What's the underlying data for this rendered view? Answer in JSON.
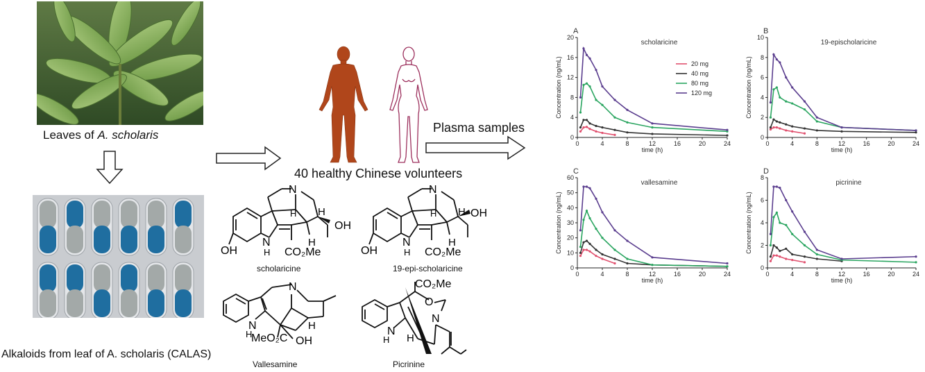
{
  "left": {
    "leaves_caption_prefix": "Leaves of ",
    "leaves_caption_species": "A. scholaris",
    "capsules_caption": "Alkaloids from leaf of A. scholaris (CALAS)"
  },
  "middle": {
    "volunteers_caption": "40  healthy Chinese volunteers",
    "plasma_caption": "Plasma samples",
    "molecules": {
      "scholaricine": "scholaricine",
      "epi": "19-epi-scholaricine",
      "vallesamine": "Vallesamine",
      "picrinine": "Picrinine"
    },
    "atoms": {
      "N": "N",
      "H": "H",
      "NH": "N\nH",
      "OH": "OH",
      "MeOH": "OH",
      "CO2Me": "CO₂Me",
      "MeO2C": "MeO₂C",
      "O": "O"
    }
  },
  "chart_data": [
    {
      "type": "line",
      "panel": "A",
      "title": "scholaricine",
      "ylabel": "Concentration (ng/mL)",
      "xlabel": "time (h)",
      "ylim": [
        0,
        20
      ],
      "yticks": [
        0,
        4,
        8,
        12,
        16,
        20
      ],
      "xlim": [
        0,
        24
      ],
      "xticks": [
        0,
        4,
        8,
        12,
        16,
        20,
        24
      ],
      "legend": "top-right",
      "series": [
        {
          "name": "20 mg",
          "color": "#e0506e",
          "x": [
            0.5,
            1,
            1.5,
            2,
            3,
            4,
            6
          ],
          "y": [
            1.2,
            2.0,
            2.1,
            1.7,
            1.2,
            0.9,
            0.5
          ]
        },
        {
          "name": "40 mg",
          "color": "#333333",
          "x": [
            0.5,
            1,
            1.5,
            2,
            3,
            4,
            6,
            8,
            12,
            24
          ],
          "y": [
            2.0,
            3.5,
            3.5,
            2.8,
            2.3,
            2.0,
            1.5,
            1.0,
            0.7,
            0.4
          ]
        },
        {
          "name": "80 mg",
          "color": "#2aa560",
          "x": [
            0.5,
            1,
            1.5,
            2,
            3,
            4,
            6,
            8,
            12,
            24
          ],
          "y": [
            5.0,
            10.5,
            10.8,
            10.2,
            7.5,
            6.5,
            4.0,
            3.0,
            2.0,
            1.2
          ]
        },
        {
          "name": "120 mg",
          "color": "#5a3d8e",
          "x": [
            0.5,
            1,
            1.5,
            2,
            3,
            4,
            6,
            8,
            12,
            24
          ],
          "y": [
            8.0,
            17.8,
            16.5,
            15.8,
            13.5,
            10.2,
            7.5,
            5.5,
            2.8,
            1.5
          ]
        }
      ]
    },
    {
      "type": "line",
      "panel": "B",
      "title": "19-epischolaricine",
      "ylabel": "Concentration (ng/mL)",
      "xlabel": "time (h)",
      "ylim": [
        0,
        10
      ],
      "yticks": [
        0,
        2,
        4,
        6,
        8,
        10
      ],
      "xlim": [
        0,
        24
      ],
      "xticks": [
        0,
        4,
        8,
        12,
        16,
        20,
        24
      ],
      "series": [
        {
          "name": "20 mg",
          "color": "#e0506e",
          "x": [
            0.5,
            1,
            1.5,
            2,
            3,
            4,
            6
          ],
          "y": [
            0.8,
            1.0,
            1.0,
            0.9,
            0.7,
            0.6,
            0.4
          ]
        },
        {
          "name": "40 mg",
          "color": "#333333",
          "x": [
            0.5,
            1,
            1.5,
            2,
            3,
            4,
            6,
            8,
            12,
            24
          ],
          "y": [
            1.0,
            1.8,
            1.6,
            1.5,
            1.3,
            1.1,
            0.9,
            0.7,
            0.6,
            0.5
          ]
        },
        {
          "name": "80 mg",
          "color": "#2aa560",
          "x": [
            0.5,
            1,
            1.5,
            2,
            3,
            4,
            6,
            8,
            12,
            24
          ],
          "y": [
            2.0,
            4.8,
            5.0,
            4.0,
            3.6,
            3.4,
            2.8,
            1.6,
            1.0,
            0.7
          ]
        },
        {
          "name": "120 mg",
          "color": "#5a3d8e",
          "x": [
            0.5,
            1,
            1.5,
            2,
            3,
            4,
            6,
            8,
            12,
            24
          ],
          "y": [
            3.5,
            8.3,
            7.8,
            7.5,
            6.0,
            5.0,
            3.6,
            2.0,
            1.0,
            0.7
          ]
        }
      ]
    },
    {
      "type": "line",
      "panel": "C",
      "title": "vallesamine",
      "ylabel": "Concentration (ng/mL)",
      "xlabel": "time (h)",
      "ylim": [
        0,
        60
      ],
      "yticks": [
        0,
        10,
        20,
        30,
        40,
        50,
        60
      ],
      "xlim": [
        0,
        24
      ],
      "xticks": [
        0,
        4,
        8,
        12,
        16,
        20,
        24
      ],
      "series": [
        {
          "name": "20 mg",
          "color": "#e0506e",
          "x": [
            0.5,
            1,
            1.5,
            2,
            3,
            4,
            6
          ],
          "y": [
            8,
            12,
            12,
            11,
            8,
            6,
            3
          ]
        },
        {
          "name": "40 mg",
          "color": "#333333",
          "x": [
            0.5,
            1,
            1.5,
            2,
            3,
            4,
            6,
            8,
            12,
            24
          ],
          "y": [
            10,
            17,
            18,
            16,
            12,
            9,
            6,
            3,
            2,
            1
          ]
        },
        {
          "name": "80 mg",
          "color": "#2aa560",
          "x": [
            0.5,
            1,
            1.5,
            2,
            3,
            4,
            6,
            8,
            12,
            24
          ],
          "y": [
            14,
            32,
            38,
            33,
            26,
            20,
            12,
            6,
            2,
            1
          ]
        },
        {
          "name": "120 mg",
          "color": "#5a3d8e",
          "x": [
            0.5,
            1,
            1.5,
            2,
            3,
            4,
            6,
            8,
            12,
            24
          ],
          "y": [
            25,
            54,
            54,
            53,
            46,
            37,
            25,
            18,
            7,
            3
          ]
        }
      ]
    },
    {
      "type": "line",
      "panel": "D",
      "title": "picrinine",
      "ylabel": "Concentration (ng/mL)",
      "xlabel": "time (h)",
      "ylim": [
        0,
        8
      ],
      "yticks": [
        0,
        2,
        4,
        6,
        8
      ],
      "xlim": [
        0,
        24
      ],
      "xticks": [
        0,
        4,
        8,
        12,
        16,
        20,
        24
      ],
      "series": [
        {
          "name": "20 mg",
          "color": "#e0506e",
          "x": [
            0.5,
            1,
            1.5,
            2,
            3,
            4,
            6
          ],
          "y": [
            0.6,
            1.1,
            1.1,
            1.0,
            0.8,
            0.7,
            0.5
          ]
        },
        {
          "name": "40 mg",
          "color": "#333333",
          "x": [
            0.5,
            1,
            1.5,
            2,
            3,
            4,
            6,
            8,
            12
          ],
          "y": [
            1.0,
            2.0,
            1.8,
            1.5,
            1.7,
            1.2,
            1.0,
            0.8,
            0.6
          ]
        },
        {
          "name": "80 mg",
          "color": "#2aa560",
          "x": [
            0.5,
            1,
            1.5,
            2,
            3,
            4,
            6,
            8,
            12,
            24
          ],
          "y": [
            2.0,
            4.5,
            4.9,
            4.0,
            3.8,
            3.0,
            2.0,
            1.2,
            0.7,
            0.5
          ]
        },
        {
          "name": "120 mg",
          "color": "#5a3d8e",
          "x": [
            0.5,
            1,
            1.5,
            2,
            3,
            4,
            6,
            8,
            12,
            24
          ],
          "y": [
            3.0,
            7.2,
            7.2,
            7.1,
            6.0,
            5.0,
            3.2,
            1.6,
            0.8,
            1.0
          ]
        }
      ]
    }
  ]
}
